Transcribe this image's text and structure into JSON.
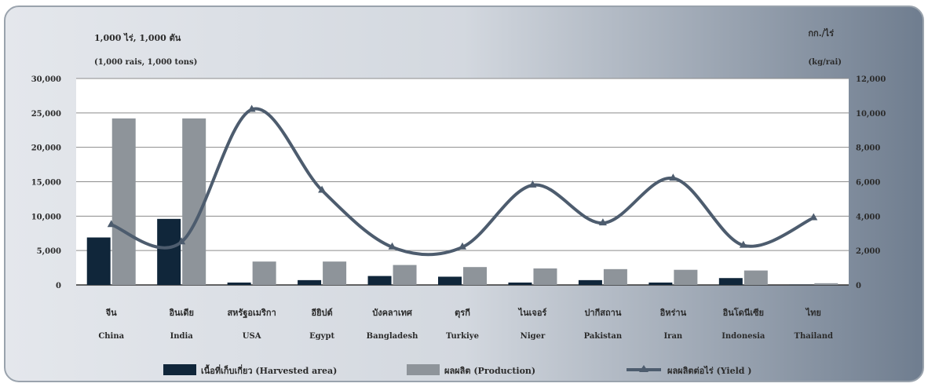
{
  "chart_data": {
    "type": "bar",
    "left_axis_label_line1": "1,000 ไร่, 1,000 ตัน",
    "left_axis_label_line2": "(1,000 rais, 1,000 tons)",
    "right_axis_label_line1": "กก./ไร่",
    "right_axis_label_line2": "(kg/rai)",
    "categories": [
      {
        "th": "จีน",
        "en": "China"
      },
      {
        "th": "อินเดีย",
        "en": "India"
      },
      {
        "th": "สหรัฐอเมริกา",
        "en": "USA"
      },
      {
        "th": "อียิปต์",
        "en": "Egypt"
      },
      {
        "th": "บังคลาเทศ",
        "en": "Bangladesh"
      },
      {
        "th": "ตุรกี",
        "en": "Turkiye"
      },
      {
        "th": "ไนเจอร์",
        "en": "Niger"
      },
      {
        "th": "ปากีสถาน",
        "en": "Pakistan"
      },
      {
        "th": "อิหร่าน",
        "en": "Iran"
      },
      {
        "th": "อินโดนีเซีย",
        "en": "Indonesia"
      },
      {
        "th": "ไทย",
        "en": "Thailand"
      }
    ],
    "series": [
      {
        "name": "เนื้อที่เก็บเกี่ยว (Harvested area)",
        "axis": "left",
        "kind": "bar",
        "color": "#10263a",
        "values": [
          6900,
          9600,
          350,
          700,
          1300,
          1200,
          350,
          700,
          350,
          1000,
          40
        ]
      },
      {
        "name": "ผลผลิต (Production)",
        "axis": "left",
        "kind": "bar",
        "color": "#8e949a",
        "values": [
          24200,
          24200,
          3400,
          3400,
          2900,
          2600,
          2400,
          2300,
          2200,
          2100,
          250
        ]
      },
      {
        "name": "ผลผลิตต่อไร่ (Yield )",
        "axis": "right",
        "kind": "line",
        "color": "#4d5c6e",
        "values": [
          3500,
          2500,
          10200,
          5500,
          2200,
          2200,
          5800,
          3600,
          6200,
          2300,
          3900
        ]
      }
    ],
    "ylim_left": [
      0,
      30000
    ],
    "ylim_right": [
      0,
      12000
    ],
    "left_ticks": [
      "30,000",
      "25,000",
      "20,000",
      "15,000",
      "10,000",
      "5,000",
      "0"
    ],
    "right_ticks": [
      "12,000",
      "10,000",
      "8,000",
      "6,000",
      "4,000",
      "2,000",
      "0"
    ],
    "grid": true,
    "legend_position": "bottom"
  }
}
